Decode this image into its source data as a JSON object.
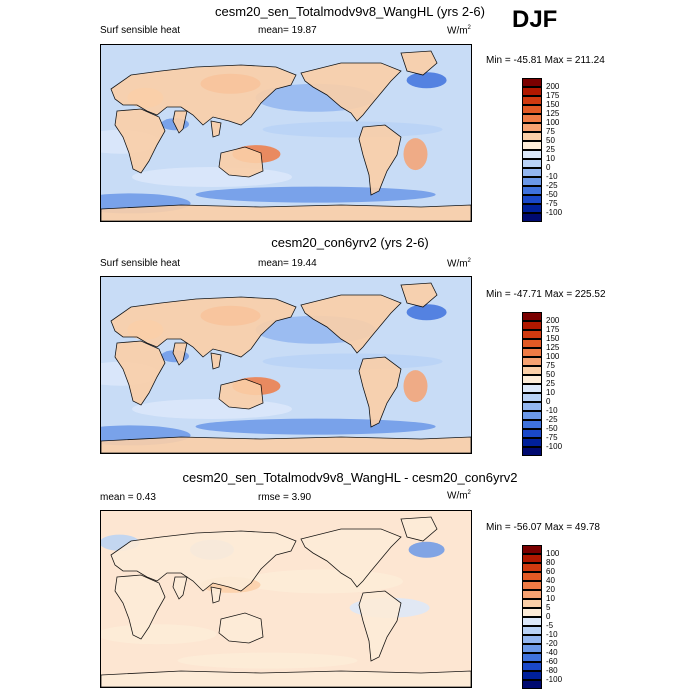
{
  "season": "DJF",
  "panels": [
    {
      "title": "cesm20_sen_Totalmodv9v8_WangHL (yrs 2-6)",
      "left_label": "Surf sensible heat",
      "center_label": "mean=  19.87",
      "units": "W/m",
      "units_sup": "2",
      "minmax": "Min = -45.81 Max = 211.24",
      "levels": [
        "200",
        "175",
        "150",
        "125",
        "100",
        "75",
        "50",
        "25",
        "10",
        "0",
        "-10",
        "-25",
        "-50",
        "-75",
        "-100"
      ],
      "colors": [
        "#7a0000",
        "#b01800",
        "#d03a10",
        "#e25a25",
        "#ef7b45",
        "#f6a272",
        "#fbcfa8",
        "#fdecd8",
        "#dce8fa",
        "#b9d2f6",
        "#93b6f0",
        "#6b98e8",
        "#3f72dd",
        "#1a48c8",
        "#00209a",
        "#000a70"
      ],
      "ocean_color": "#c8dcf6",
      "kind": "field"
    },
    {
      "title": "cesm20_con6yrv2 (yrs 2-6)",
      "left_label": "Surf sensible heat",
      "center_label": "mean=  19.44",
      "units": "W/m",
      "units_sup": "2",
      "minmax": "Min = -47.71 Max = 225.52",
      "levels": [
        "200",
        "175",
        "150",
        "125",
        "100",
        "75",
        "50",
        "25",
        "10",
        "0",
        "-10",
        "-25",
        "-50",
        "-75",
        "-100"
      ],
      "colors": [
        "#7a0000",
        "#b01800",
        "#d03a10",
        "#e25a25",
        "#ef7b45",
        "#f6a272",
        "#fbcfa8",
        "#fdecd8",
        "#dce8fa",
        "#b9d2f6",
        "#93b6f0",
        "#6b98e8",
        "#3f72dd",
        "#1a48c8",
        "#00209a",
        "#000a70"
      ],
      "ocean_color": "#c8dcf6",
      "kind": "field"
    },
    {
      "title": "cesm20_sen_Totalmodv9v8_WangHL - cesm20_con6yrv2",
      "left_label": "mean =   0.43",
      "center_label": "rmse =   3.90",
      "units": "W/m",
      "units_sup": "2",
      "minmax": "Min = -56.07 Max =  49.78",
      "levels": [
        "100",
        "80",
        "60",
        "40",
        "20",
        "10",
        "5",
        "0",
        "-5",
        "-10",
        "-20",
        "-40",
        "-60",
        "-80",
        "-100"
      ],
      "colors": [
        "#7a0000",
        "#b01800",
        "#d03a10",
        "#e25a25",
        "#ef7b45",
        "#f6a272",
        "#fbcfa8",
        "#fdecd8",
        "#dce8fa",
        "#b9d2f6",
        "#93b6f0",
        "#6b98e8",
        "#3f72dd",
        "#1a48c8",
        "#00209a",
        "#000a70"
      ],
      "ocean_color": "#fde6d2",
      "kind": "diff"
    }
  ]
}
